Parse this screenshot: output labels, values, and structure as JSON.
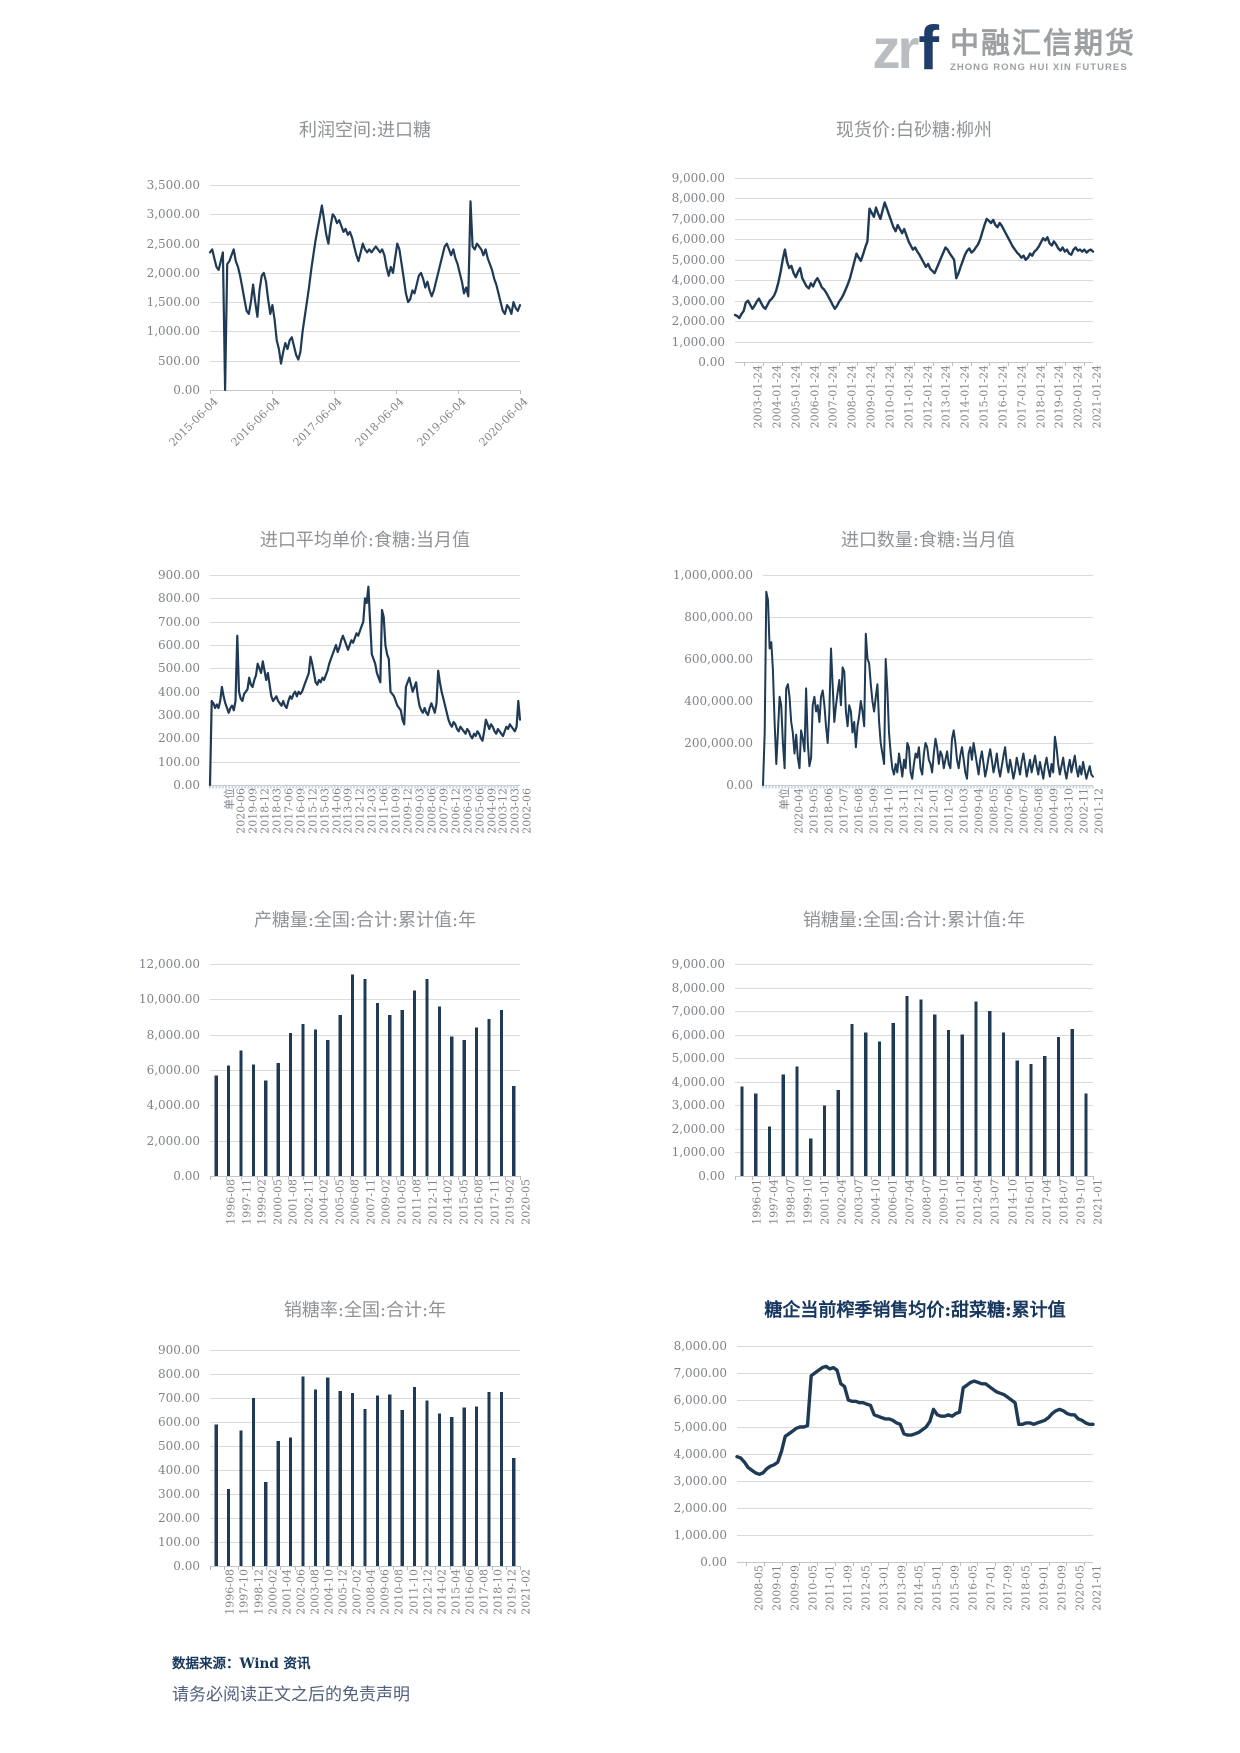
{
  "logo": {
    "zr": "zr",
    "f": "f",
    "company_cn": "中融汇信期货",
    "company_en": "ZHONG RONG HUI XIN FUTURES"
  },
  "footer": {
    "source": "数据来源：Wind 资讯",
    "disclaimer": "请务必阅读正文之后的免责声明"
  },
  "colors": {
    "series": "#1f3a55",
    "grid": "#dadada",
    "axis_line": "#c3c7cc",
    "axis_text": "#7f8389",
    "title_text": "#8f9296",
    "accent_title": "#17375e"
  },
  "chart_data": [
    {
      "id": "profit-imported-sugar",
      "type": "line",
      "title": "利润空间:进口糖",
      "ylim": [
        0,
        3500
      ],
      "yticks": [
        0,
        500,
        1000,
        1500,
        2000,
        2500,
        3000,
        3500
      ],
      "grid": true,
      "legend": "none",
      "x_label_rotation": 45,
      "xlabels": [
        "2015-06-04",
        "2016-06-04",
        "2017-06-04",
        "2018-06-04",
        "2019-06-04",
        "2020-06-04"
      ],
      "values": [
        2350,
        2400,
        2250,
        2100,
        2050,
        2200,
        2350,
        0,
        2150,
        2200,
        2300,
        2400,
        2200,
        2100,
        1950,
        1750,
        1550,
        1350,
        1300,
        1500,
        1800,
        1500,
        1250,
        1700,
        1950,
        2000,
        1850,
        1550,
        1300,
        1450,
        1200,
        850,
        700,
        450,
        650,
        800,
        700,
        850,
        900,
        750,
        600,
        520,
        650,
        1000,
        1250,
        1500,
        1750,
        2050,
        2300,
        2550,
        2750,
        2950,
        3150,
        2900,
        2650,
        2500,
        2800,
        3000,
        2950,
        2850,
        2900,
        2800,
        2700,
        2750,
        2650,
        2700,
        2600,
        2450,
        2300,
        2200,
        2350,
        2500,
        2400,
        2350,
        2400,
        2350,
        2400,
        2450,
        2400,
        2350,
        2400,
        2300,
        2100,
        1950,
        2100,
        2000,
        2250,
        2500,
        2400,
        2150,
        1900,
        1650,
        1500,
        1550,
        1700,
        1650,
        1800,
        1950,
        2000,
        1900,
        1750,
        1850,
        1700,
        1600,
        1700,
        1850,
        2000,
        2150,
        2300,
        2450,
        2500,
        2400,
        2300,
        2400,
        2250,
        2150,
        2000,
        1850,
        1650,
        1750,
        1600,
        3220,
        2450,
        2400,
        2500,
        2450,
        2400,
        2300,
        2400,
        2250,
        2150,
        2050,
        1900,
        1800,
        1650,
        1500,
        1350,
        1300,
        1450,
        1400,
        1300,
        1500,
        1400,
        1350,
        1450
      ]
    },
    {
      "id": "spot-price-white-sugar-liuzhou",
      "type": "line",
      "title": "现货价:白砂糖:柳州",
      "ylim": [
        0,
        9000
      ],
      "yticks": [
        0,
        1000,
        2000,
        3000,
        4000,
        5000,
        6000,
        7000,
        8000,
        9000
      ],
      "grid": true,
      "legend": "none",
      "x_label_rotation": 90,
      "xlabels": [
        "2003-01-24",
        "2004-01-24",
        "2005-01-24",
        "2006-01-24",
        "2007-01-24",
        "2008-01-24",
        "2009-01-24",
        "2010-01-24",
        "2011-01-24",
        "2012-01-24",
        "2013-01-24",
        "2014-01-24",
        "2015-01-24",
        "2016-01-24",
        "2017-01-24",
        "2018-01-24",
        "2019-01-24",
        "2020-01-24",
        "2021-01-24"
      ],
      "values": [
        2300,
        2250,
        2150,
        2350,
        2500,
        2900,
        3000,
        2800,
        2600,
        2750,
        2950,
        3100,
        2900,
        2700,
        2600,
        2800,
        3000,
        3100,
        3250,
        3500,
        3900,
        4400,
        5000,
        5500,
        4900,
        4600,
        4700,
        4350,
        4150,
        4400,
        4600,
        4100,
        3900,
        3700,
        3600,
        3850,
        3700,
        3950,
        4100,
        3900,
        3650,
        3550,
        3400,
        3200,
        3000,
        2800,
        2600,
        2750,
        2950,
        3100,
        3300,
        3550,
        3800,
        4100,
        4500,
        4900,
        5300,
        5100,
        4950,
        5250,
        5600,
        5900,
        7500,
        7300,
        7100,
        7550,
        7250,
        7000,
        7400,
        7800,
        7500,
        7200,
        6900,
        6600,
        6400,
        6700,
        6500,
        6300,
        6500,
        6200,
        5900,
        5700,
        5500,
        5600,
        5400,
        5250,
        5050,
        4850,
        4650,
        4800,
        4550,
        4450,
        4350,
        4600,
        4850,
        5100,
        5350,
        5600,
        5500,
        5300,
        5150,
        5000,
        4100,
        4350,
        4650,
        4950,
        5250,
        5450,
        5550,
        5350,
        5450,
        5600,
        5750,
        6000,
        6350,
        6700,
        7000,
        6900,
        6800,
        6950,
        6700,
        6600,
        6800,
        6650,
        6450,
        6250,
        6050,
        5850,
        5650,
        5500,
        5350,
        5250,
        5100,
        5200,
        5000,
        5100,
        5300,
        5200,
        5400,
        5500,
        5650,
        5850,
        6050,
        5950,
        6100,
        5800,
        5700,
        5900,
        5750,
        5550,
        5450,
        5600,
        5400,
        5500,
        5300,
        5250,
        5500,
        5600,
        5450,
        5500,
        5400,
        5500,
        5350,
        5450,
        5500,
        5400
      ]
    },
    {
      "id": "import-avg-unit-price-sugar-monthly",
      "type": "line",
      "title": "进口平均单价:食糖:当月值",
      "ylim": [
        0,
        900
      ],
      "yticks": [
        0,
        100,
        200,
        300,
        400,
        500,
        600,
        700,
        800,
        900
      ],
      "grid": true,
      "legend": "none",
      "x_label_rotation": 90,
      "x_axis_reversed": true,
      "xlabels": [
        "单位",
        "2020-06",
        "2019-09",
        "2018-12",
        "2018-03",
        "2017-06",
        "2016-09",
        "2015-12",
        "2015-03",
        "2014-06",
        "2013-09",
        "2012-12",
        "2012-03",
        "2011-06",
        "2010-09",
        "2009-12",
        "2009-03",
        "2008-06",
        "2007-09",
        "2006-12",
        "2006-03",
        "2005-06",
        "2004-09",
        "2003-12",
        "2003-03",
        "2002-06"
      ],
      "values": [
        0,
        360,
        350,
        330,
        345,
        330,
        360,
        420,
        380,
        350,
        330,
        310,
        330,
        340,
        320,
        360,
        640,
        400,
        370,
        360,
        390,
        400,
        410,
        460,
        430,
        420,
        450,
        470,
        520,
        500,
        480,
        530,
        490,
        450,
        480,
        430,
        380,
        360,
        370,
        380,
        360,
        350,
        340,
        360,
        340,
        330,
        360,
        380,
        370,
        390,
        400,
        380,
        400,
        390,
        400,
        420,
        440,
        460,
        480,
        550,
        520,
        480,
        440,
        430,
        450,
        440,
        460,
        450,
        470,
        490,
        520,
        540,
        560,
        580,
        600,
        570,
        590,
        620,
        640,
        620,
        600,
        580,
        600,
        620,
        610,
        630,
        650,
        640,
        660,
        680,
        700,
        800,
        780,
        850,
        700,
        560,
        540,
        520,
        480,
        460,
        440,
        750,
        720,
        600,
        560,
        540,
        400,
        390,
        380,
        360,
        340,
        330,
        320,
        280,
        260,
        420,
        440,
        460,
        430,
        400,
        420,
        440,
        380,
        340,
        320,
        310,
        330,
        310,
        300,
        330,
        350,
        330,
        310,
        350,
        490,
        440,
        400,
        370,
        340,
        310,
        280,
        260,
        250,
        270,
        260,
        240,
        230,
        250,
        240,
        230,
        220,
        240,
        230,
        210,
        200,
        220,
        210,
        230,
        220,
        200,
        190,
        230,
        280,
        260,
        240,
        260,
        250,
        230,
        220,
        240,
        230,
        220,
        210,
        230,
        250,
        240,
        260,
        250,
        240,
        230,
        250,
        360,
        280
      ]
    },
    {
      "id": "import-quantity-sugar-monthly",
      "type": "line",
      "title": "进口数量:食糖:当月值",
      "ylim": [
        0,
        1000000
      ],
      "yticks": [
        0,
        200000,
        400000,
        600000,
        800000,
        1000000
      ],
      "grid": true,
      "legend": "none",
      "x_label_rotation": 90,
      "x_axis_reversed": true,
      "xlabels": [
        "单位",
        "2020-04",
        "2019-05",
        "2018-06",
        "2017-07",
        "2016-08",
        "2015-09",
        "2014-10",
        "2013-11",
        "2012-12",
        "2012-01",
        "2011-02",
        "2010-03",
        "2009-04",
        "2008-05",
        "2007-06",
        "2006-07",
        "2005-08",
        "2004-09",
        "2003-10",
        "2002-11",
        "2001-12"
      ],
      "values": [
        0,
        250000,
        920000,
        880000,
        650000,
        680000,
        550000,
        300000,
        100000,
        250000,
        420000,
        380000,
        200000,
        80000,
        460000,
        480000,
        420000,
        300000,
        250000,
        150000,
        240000,
        130000,
        80000,
        260000,
        220000,
        160000,
        460000,
        200000,
        90000,
        130000,
        380000,
        420000,
        350000,
        380000,
        300000,
        420000,
        450000,
        380000,
        280000,
        200000,
        340000,
        650000,
        480000,
        300000,
        380000,
        440000,
        500000,
        380000,
        560000,
        540000,
        350000,
        280000,
        380000,
        350000,
        250000,
        300000,
        180000,
        280000,
        330000,
        400000,
        350000,
        280000,
        720000,
        600000,
        580000,
        480000,
        400000,
        350000,
        420000,
        480000,
        300000,
        200000,
        150000,
        100000,
        600000,
        450000,
        250000,
        150000,
        80000,
        50000,
        100000,
        60000,
        150000,
        100000,
        40000,
        120000,
        80000,
        200000,
        180000,
        60000,
        30000,
        100000,
        150000,
        130000,
        180000,
        80000,
        50000,
        150000,
        200000,
        180000,
        120000,
        100000,
        60000,
        150000,
        220000,
        180000,
        100000,
        160000,
        140000,
        80000,
        120000,
        160000,
        100000,
        80000,
        220000,
        260000,
        200000,
        120000,
        80000,
        140000,
        180000,
        120000,
        60000,
        30000,
        150000,
        180000,
        120000,
        200000,
        150000,
        100000,
        50000,
        120000,
        160000,
        100000,
        40000,
        80000,
        130000,
        170000,
        120000,
        60000,
        100000,
        150000,
        80000,
        40000,
        90000,
        140000,
        180000,
        100000,
        60000,
        120000,
        80000,
        30000,
        70000,
        130000,
        90000,
        50000,
        110000,
        150000,
        100000,
        40000,
        80000,
        120000,
        60000,
        100000,
        140000,
        90000,
        50000,
        110000,
        70000,
        30000,
        90000,
        130000,
        80000,
        40000,
        100000,
        60000,
        230000,
        180000,
        100000,
        50000,
        90000,
        130000,
        70000,
        30000,
        80000,
        120000,
        60000,
        100000,
        140000,
        80000,
        40000,
        90000,
        50000,
        110000,
        70000,
        30000,
        60000,
        90000,
        50000,
        40000
      ]
    },
    {
      "id": "sugar-production-national-cumulative-year",
      "type": "bar",
      "title": "产糖量:全国:合计:累计值:年",
      "ylim": [
        0,
        12000
      ],
      "yticks": [
        0,
        2000,
        4000,
        6000,
        8000,
        10000,
        12000
      ],
      "grid": true,
      "legend": "none",
      "x_label_rotation": 90,
      "xlabels": [
        "1996-08",
        "1997-11",
        "1999-02",
        "2000-05",
        "2001-08",
        "2002-11",
        "2004-02",
        "2005-05",
        "2006-08",
        "2007-11",
        "2009-02",
        "2010-05",
        "2011-08",
        "2012-11",
        "2014-02",
        "2015-05",
        "2016-08",
        "2017-11",
        "2019-02",
        "2020-05"
      ],
      "values": [
        5700,
        6250,
        7100,
        6300,
        5400,
        6400,
        8100,
        8600,
        8300,
        7700,
        9100,
        11400,
        11150,
        9800,
        9100,
        9400,
        10500,
        11150,
        9600,
        7900,
        7700,
        8400,
        8900,
        9400,
        5100
      ]
    },
    {
      "id": "sugar-sales-national-cumulative-year",
      "type": "bar",
      "title": "销糖量:全国:合计:累计值:年",
      "ylim": [
        0,
        9000
      ],
      "yticks": [
        0,
        1000,
        2000,
        3000,
        4000,
        5000,
        6000,
        7000,
        8000,
        9000
      ],
      "grid": true,
      "legend": "none",
      "x_label_rotation": 90,
      "xlabels": [
        "1996-01",
        "1997-04",
        "1998-07",
        "1999-10",
        "2001-01",
        "2002-04",
        "2003-07",
        "2004-10",
        "2006-01",
        "2007-04",
        "2008-07",
        "2009-10",
        "2011-01",
        "2012-04",
        "2013-07",
        "2014-10",
        "2016-01",
        "2017-04",
        "2018-07",
        "2019-10",
        "2021-01"
      ],
      "values": [
        3800,
        3500,
        2100,
        4300,
        4650,
        1600,
        3000,
        3650,
        6450,
        6100,
        5700,
        6500,
        7650,
        7500,
        6850,
        6200,
        6000,
        7400,
        7000,
        6100,
        4900,
        4750,
        5100,
        5900,
        6250,
        3500
      ]
    },
    {
      "id": "sugar-sales-rate-national-year",
      "type": "bar",
      "title": "销糖率:全国:合计:年",
      "ylim": [
        0,
        900
      ],
      "yticks": [
        0,
        100,
        200,
        300,
        400,
        500,
        600,
        700,
        800,
        900
      ],
      "grid": true,
      "legend": "none",
      "x_label_rotation": 90,
      "xlabels": [
        "1996-08",
        "1997-10",
        "1998-12",
        "2000-02",
        "2001-04",
        "2002-06",
        "2003-08",
        "2004-10",
        "2005-12",
        "2007-02",
        "2008-04",
        "2009-06",
        "2010-08",
        "2011-10",
        "2012-12",
        "2014-02",
        "2015-04",
        "2016-06",
        "2017-08",
        "2018-10",
        "2019-12",
        "2021-02"
      ],
      "values": [
        590,
        320,
        565,
        700,
        350,
        520,
        535,
        790,
        735,
        785,
        730,
        720,
        655,
        710,
        715,
        650,
        745,
        690,
        635,
        620,
        660,
        665,
        725,
        725,
        450
      ]
    },
    {
      "id": "beet-sugar-season-avg-sale-price-cumulative",
      "type": "line",
      "title": "糖企当前榨季销售均价:甜菜糖:累计值",
      "accent": true,
      "ylim": [
        0,
        8000
      ],
      "yticks": [
        0,
        1000,
        2000,
        3000,
        4000,
        5000,
        6000,
        7000,
        8000
      ],
      "grid": true,
      "legend": "none",
      "x_label_rotation": 90,
      "xlabels": [
        "2008-05",
        "2009-01",
        "2009-09",
        "2010-05",
        "2011-01",
        "2011-09",
        "2012-05",
        "2013-01",
        "2013-09",
        "2014-05",
        "2015-01",
        "2015-09",
        "2016-05",
        "2017-01",
        "2017-09",
        "2018-05",
        "2019-01",
        "2019-09",
        "2020-05",
        "2021-01"
      ],
      "values": [
        3900,
        3850,
        3700,
        3500,
        3400,
        3300,
        3250,
        3300,
        3450,
        3550,
        3600,
        3700,
        4100,
        4650,
        4750,
        4850,
        4950,
        5000,
        5000,
        5050,
        6900,
        7000,
        7100,
        7200,
        7250,
        7150,
        7200,
        7100,
        6600,
        6500,
        6000,
        5950,
        5950,
        5900,
        5900,
        5850,
        5800,
        5450,
        5400,
        5350,
        5300,
        5300,
        5250,
        5150,
        5100,
        4750,
        4700,
        4700,
        4750,
        4800,
        4900,
        5000,
        5200,
        5650,
        5450,
        5400,
        5400,
        5450,
        5400,
        5500,
        5550,
        6450,
        6550,
        6650,
        6700,
        6650,
        6600,
        6600,
        6500,
        6400,
        6300,
        6250,
        6200,
        6100,
        6000,
        5900,
        5100,
        5100,
        5150,
        5150,
        5100,
        5150,
        5200,
        5250,
        5350,
        5500,
        5600,
        5650,
        5600,
        5500,
        5450,
        5450,
        5300,
        5250,
        5150,
        5100,
        5100
      ]
    }
  ]
}
